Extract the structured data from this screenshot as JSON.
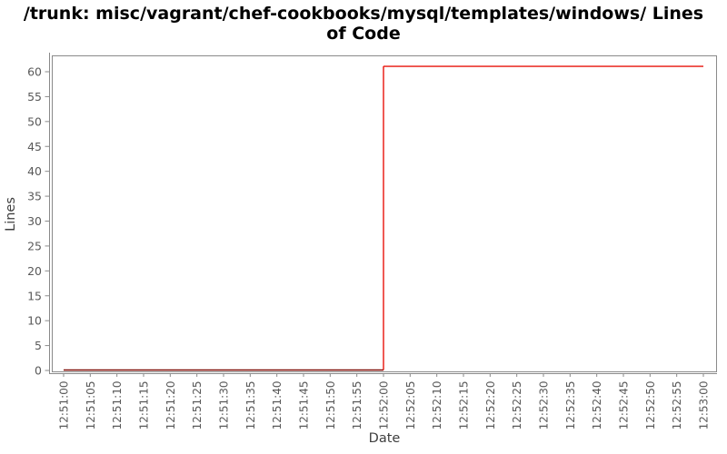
{
  "page": {
    "background": "#ffffff"
  },
  "chart_data": {
    "type": "line",
    "title": "/trunk: misc/vagrant/chef-cookbooks/mysql/templates/windows/ Lines of Code",
    "title_lines": [
      "/trunk: misc/vagrant/chef-cookbooks/mysql/templates/windows/ Lines",
      "of Code"
    ],
    "xlabel": "Date",
    "ylabel": "Lines",
    "grid": "off",
    "legend": "none",
    "ylim": [
      0,
      63
    ],
    "y_ticks": [
      0,
      5,
      10,
      15,
      20,
      25,
      30,
      35,
      40,
      45,
      50,
      55,
      60
    ],
    "x_tick_interval_seconds": 5,
    "x_tick_labels": [
      "12:51:00",
      "12:51:05",
      "12:51:10",
      "12:51:15",
      "12:51:20",
      "12:51:25",
      "12:51:30",
      "12:51:35",
      "12:51:40",
      "12:51:45",
      "12:51:50",
      "12:51:55",
      "12:52:00",
      "12:52:05",
      "12:52:10",
      "12:52:15",
      "12:52:20",
      "12:52:25",
      "12:52:30",
      "12:52:35",
      "12:52:40",
      "12:52:45",
      "12:52:50",
      "12:52:55",
      "12:53:00"
    ],
    "series": [
      {
        "name": "Lines of Code",
        "style": "step",
        "color": "#e8130a",
        "baseline_color": "#7d0b06",
        "points": [
          {
            "x": "12:51:00",
            "y": 0
          },
          {
            "x": "12:52:00",
            "y": 0
          },
          {
            "x": "12:52:00",
            "y": 61
          },
          {
            "x": "12:53:00",
            "y": 61
          }
        ]
      }
    ],
    "colors": {
      "title": "#000000",
      "plot_border": "#8a8a8a",
      "axis_line": "#8a8a8a",
      "tick_mark": "#8a8a8a",
      "tick_label": "#595959",
      "axis_label": "#3f3f3f",
      "plot_background": "#ffffff"
    }
  }
}
